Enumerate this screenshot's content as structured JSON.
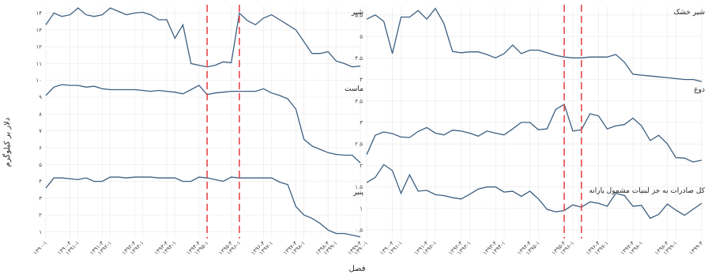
{
  "x_axis_title": "فصل",
  "y_axis_title": "دلار بر کیلوگرم",
  "colors": {
    "line": "#3d5f80",
    "highlight": "#e8474a",
    "grid": "#ebebeb"
  },
  "chart_data": [
    {
      "type": "line",
      "panel": "left",
      "x": [
        "۱۳۹۰-۱",
        "۱۳۹۰-۲",
        "۱۳۹۰-۳",
        "۱۳۹۰-۴",
        "۱۳۹۱-۱",
        "۱۳۹۱-۲",
        "۱۳۹۱-۳",
        "۱۳۹۱-۴",
        "۱۳۹۲-۱",
        "۱۳۹۲-۲",
        "۱۳۹۲-۳",
        "۱۳۹۲-۴",
        "۱۳۹۳-۱",
        "۱۳۹۳-۲",
        "۱۳۹۳-۳",
        "۱۳۹۳-۴",
        "۱۳۹۴-۱",
        "۱۳۹۴-۲",
        "۱۳۹۴-۳",
        "۱۳۹۴-۴",
        "۱۳۹۵-۱",
        "۱۳۹۵-۲",
        "۱۳۹۵-۳",
        "۱۳۹۵-۴",
        "۱۳۹۶-۱",
        "۱۳۹۶-۲",
        "۱۳۹۶-۳",
        "۱۳۹۶-۴",
        "۱۳۹۷-۱",
        "۱۳۹۷-۲",
        "۱۳۹۷-۳",
        "۱۳۹۷-۴",
        "۱۳۹۸-۱",
        "۱۳۹۸-۲",
        "۱۳۹۸-۳",
        "۱۳۹۸-۴",
        "۱۳۹۹-۱",
        "۱۳۹۹-۲",
        "۱۳۹۹-۳",
        "۱۳۹۹-۴"
      ],
      "tick_labels": [
        "۱۳۹۰-۱",
        "۱۳۹۰-۴",
        "۱۳۹۱-۱",
        "۱۳۹۱-۴",
        "۱۳۹۲-۱",
        "۱۳۹۲-۴",
        "۱۳۹۳-۱",
        "۱۳۹۳-۴",
        "۱۳۹۴-۱",
        "۱۳۹۴-۴",
        "۱۳۹۵-۱",
        "۱۳۹۵-۴",
        "۱۳۹۶-۱",
        "۱۳۹۶-۴",
        "۱۳۹۷-۱",
        "۱۳۹۷-۴",
        "۱۳۹۸-۱",
        "۱۳۹۸-۴",
        "۱۳۹۹-۱",
        "۱۳۹۹-۴"
      ],
      "y_ticks": [
        "۱",
        "۲",
        "۳",
        "۴",
        "۵",
        "۶",
        "۷",
        "۸",
        "۹",
        "۱۰",
        "۱۱",
        "۱۲",
        "۱۳",
        "۱۴"
      ],
      "ylim": [
        0.6,
        14.4
      ],
      "vlines_at": [
        "۱۳۹۵-۱",
        "۱۳۹۶-۱"
      ],
      "series": [
        {
          "name": "شیر",
          "values": [
            13.3,
            14.0,
            13.8,
            13.9,
            14.3,
            13.9,
            13.8,
            13.9,
            14.3,
            14.1,
            13.9,
            14.0,
            14.05,
            13.9,
            13.6,
            13.6,
            12.5,
            13.3,
            11.0,
            10.9,
            10.8,
            10.9,
            11.1,
            11.05,
            14.0,
            13.55,
            13.3,
            13.7,
            13.9,
            13.6,
            13.3,
            13.0,
            12.3,
            11.6,
            11.6,
            11.7,
            11.15,
            11.0,
            10.8,
            10.85
          ]
        },
        {
          "name": "ماست",
          "values": [
            9.1,
            9.6,
            9.75,
            9.7,
            9.7,
            9.6,
            9.65,
            9.5,
            9.45,
            9.45,
            9.45,
            9.45,
            9.4,
            9.35,
            9.4,
            9.35,
            9.3,
            9.2,
            9.45,
            9.7,
            9.15,
            9.25,
            9.3,
            9.35,
            9.35,
            9.35,
            9.35,
            9.5,
            9.25,
            9.1,
            8.9,
            8.3,
            6.5,
            6.1,
            5.9,
            5.7,
            5.6,
            5.55,
            5.55,
            5.1
          ]
        },
        {
          "name": "پنیر",
          "values": [
            3.6,
            4.2,
            4.2,
            4.15,
            4.1,
            4.2,
            4.0,
            4.0,
            4.25,
            4.25,
            4.2,
            4.25,
            4.25,
            4.25,
            4.2,
            4.2,
            4.2,
            4.0,
            4.0,
            4.25,
            4.2,
            4.1,
            4.0,
            4.25,
            4.2,
            4.2,
            4.2,
            4.2,
            4.2,
            3.95,
            3.8,
            2.5,
            2.0,
            1.8,
            1.5,
            1.1,
            0.9,
            0.9,
            0.8,
            0.7
          ]
        }
      ]
    },
    {
      "type": "line",
      "panel": "right",
      "x": [
        "۱۳۹۰-۱",
        "۱۳۹۰-۲",
        "۱۳۹۰-۳",
        "۱۳۹۰-۴",
        "۱۳۹۱-۱",
        "۱۳۹۱-۲",
        "۱۳۹۱-۳",
        "۱۳۹۱-۴",
        "۱۳۹۲-۱",
        "۱۳۹۲-۲",
        "۱۳۹۲-۳",
        "۱۳۹۲-۴",
        "۱۳۹۳-۱",
        "۱۳۹۳-۲",
        "۱۳۹۳-۳",
        "۱۳۹۳-۴",
        "۱۳۹۴-۱",
        "۱۳۹۴-۲",
        "۱۳۹۴-۳",
        "۱۳۹۴-۴",
        "۱۳۹۵-۱",
        "۱۳۹۵-۲",
        "۱۳۹۵-۳",
        "۱۳۹۵-۴",
        "۱۳۹۶-۱",
        "۱۳۹۶-۲",
        "۱۳۹۶-۳",
        "۱۳۹۶-۴",
        "۱۳۹۷-۱",
        "۱۳۹۷-۲",
        "۱۳۹۷-۳",
        "۱۳۹۷-۴",
        "۱۳۹۸-۱",
        "۱۳۹۸-۲",
        "۱۳۹۸-۳",
        "۱۳۹۸-۴",
        "۱۳۹۹-۱",
        "۱۳۹۹-۲",
        "۱۳۹۹-۳",
        "۱۳۹۹-۴"
      ],
      "tick_labels": [
        "۱۳۹۰-۱",
        "۱۳۹۰-۴",
        "۱۳۹۱-۱",
        "۱۳۹۱-۴",
        "۱۳۹۲-۱",
        "۱۳۹۲-۴",
        "۱۳۹۳-۱",
        "۱۳۹۳-۴",
        "۱۳۹۴-۱",
        "۱۳۹۴-۴",
        "۱۳۹۵-۱",
        "۱۳۹۵-۴",
        "۱۳۹۶-۱",
        "۱۳۹۶-۴",
        "۱۳۹۷-۱",
        "۱۳۹۷-۴",
        "۱۳۹۸-۱",
        "۱۳۹۸-۴",
        "۱۳۹۹-۱",
        "۱۳۹۹-۴"
      ],
      "y_ticks": [
        "۰.۵",
        "۱",
        "۱.۵",
        "۲",
        "۲.۵",
        "۳",
        "۳.۵",
        "۴",
        "۴.۵",
        "۵",
        "۵.۵"
      ],
      "ylim": [
        0.3,
        5.7
      ],
      "vlines_at": [
        "۱۳۹۵-۴",
        "۱۳۹۶-۲"
      ],
      "series": [
        {
          "name": "شیر خشک",
          "values": [
            5.4,
            5.5,
            5.35,
            4.6,
            5.45,
            5.45,
            5.6,
            5.4,
            5.65,
            5.3,
            4.65,
            4.62,
            4.64,
            4.64,
            4.58,
            4.5,
            4.6,
            4.8,
            4.6,
            4.68,
            4.68,
            4.62,
            4.56,
            4.52,
            4.5,
            4.5,
            4.52,
            4.52,
            4.52,
            4.58,
            4.4,
            4.12,
            4.1,
            4.08,
            4.06,
            4.04,
            4.02,
            4.0,
            4.0,
            3.95
          ]
        },
        {
          "name": "دوغ",
          "values": [
            2.25,
            2.7,
            2.78,
            2.74,
            2.66,
            2.65,
            2.79,
            2.88,
            2.75,
            2.71,
            2.82,
            2.8,
            2.75,
            2.68,
            2.8,
            2.75,
            2.71,
            2.85,
            3.0,
            3.0,
            2.83,
            2.85,
            3.3,
            3.42,
            2.8,
            2.83,
            3.2,
            3.15,
            2.85,
            2.92,
            2.95,
            3.1,
            2.92,
            2.58,
            2.7,
            2.5,
            2.18,
            2.17,
            2.08,
            2.12
          ]
        },
        {
          "name": "کل صادرات به جز لبنیات مشمول یارانه",
          "values": [
            1.6,
            1.72,
            2.02,
            1.88,
            1.35,
            1.78,
            1.4,
            1.42,
            1.32,
            1.3,
            1.25,
            1.22,
            1.33,
            1.45,
            1.5,
            1.5,
            1.38,
            1.4,
            1.28,
            1.4,
            1.22,
            0.98,
            0.92,
            0.95,
            1.08,
            1.03,
            1.15,
            1.12,
            1.05,
            1.35,
            1.3,
            1.05,
            1.07,
            0.77,
            0.86,
            1.1,
            0.96,
            0.84,
            0.98,
            1.12
          ]
        }
      ]
    }
  ]
}
